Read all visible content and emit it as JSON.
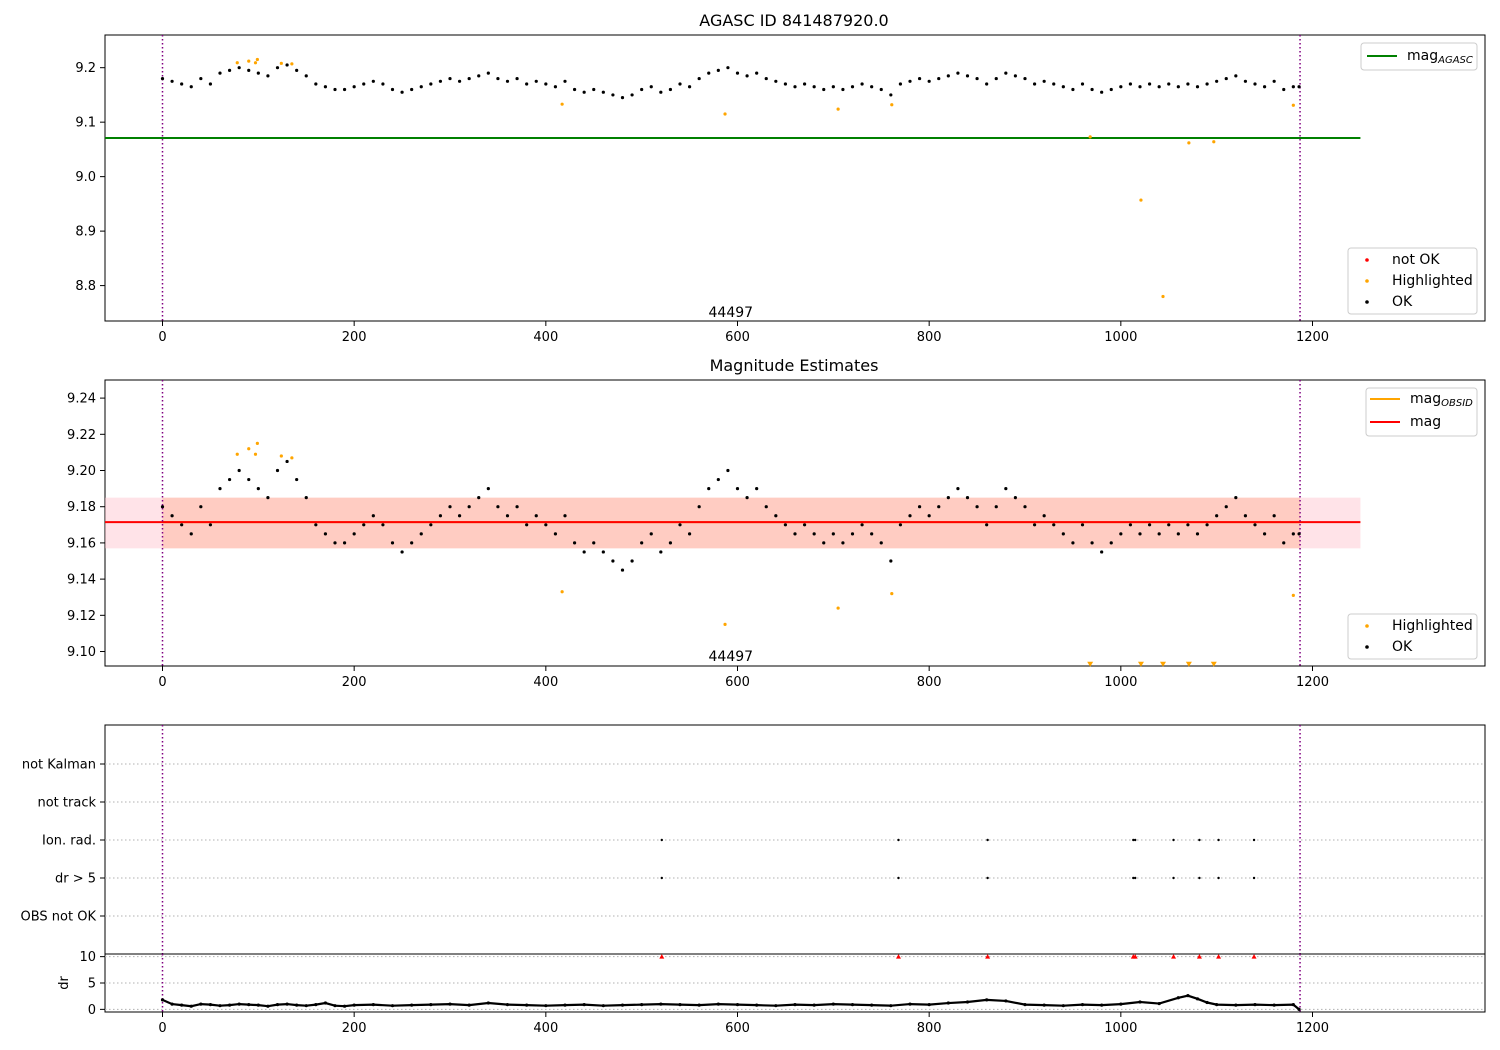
{
  "chart_data": [
    {
      "type": "scatter",
      "title": "AGASC ID 841487920.0",
      "xlabel": "",
      "ylabel": "",
      "xlim": [
        -60,
        1380
      ],
      "ylim": [
        8.735,
        9.26
      ],
      "xticks": [
        "0",
        "200",
        "400",
        "600",
        "800",
        "1000",
        "1200"
      ],
      "xtick_values": [
        0,
        200,
        400,
        600,
        800,
        1000,
        1200
      ],
      "yticks": [
        "8.8",
        "8.9",
        "9.0",
        "9.1",
        "9.2"
      ],
      "ytick_values": [
        8.8,
        8.9,
        9.0,
        9.1,
        9.2
      ],
      "vlines": [
        0,
        1187
      ],
      "annotation": {
        "text": "44497",
        "x": 593,
        "y": 8.75
      },
      "hlines": [
        {
          "name": "magAGASC",
          "y": 9.071,
          "x": [
            -60,
            1250
          ],
          "color": "#008000"
        }
      ],
      "legend": {
        "lines": [
          {
            "label": "mag",
            "sub": "AGASC",
            "color": "#008000"
          }
        ],
        "markers": [
          {
            "label": "not OK",
            "color": "#ff0000"
          },
          {
            "label": "Highlighted",
            "color": "#ffa500"
          },
          {
            "label": "OK",
            "color": "#000000"
          }
        ]
      },
      "series": [
        {
          "name": "OK",
          "color": "#000000",
          "shape": "dot",
          "x": [
            0,
            10,
            20,
            30,
            40,
            50,
            60,
            70,
            80,
            90,
            100,
            110,
            120,
            130,
            140,
            150,
            160,
            170,
            180,
            190,
            200,
            210,
            220,
            230,
            240,
            250,
            260,
            270,
            280,
            290,
            300,
            310,
            320,
            330,
            340,
            350,
            360,
            370,
            380,
            390,
            400,
            410,
            420,
            430,
            440,
            450,
            460,
            470,
            480,
            490,
            500,
            510,
            520,
            530,
            540,
            550,
            560,
            570,
            580,
            590,
            600,
            610,
            620,
            630,
            640,
            650,
            660,
            670,
            680,
            690,
            700,
            710,
            720,
            730,
            740,
            750,
            760,
            770,
            780,
            790,
            800,
            810,
            820,
            830,
            840,
            850,
            860,
            870,
            880,
            890,
            900,
            910,
            920,
            930,
            940,
            950,
            960,
            970,
            980,
            990,
            1000,
            1010,
            1020,
            1030,
            1040,
            1050,
            1060,
            1070,
            1080,
            1090,
            1100,
            1110,
            1120,
            1130,
            1140,
            1150,
            1160,
            1170,
            1180,
            1186
          ],
          "y": [
            9.18,
            9.175,
            9.17,
            9.165,
            9.18,
            9.17,
            9.19,
            9.195,
            9.2,
            9.195,
            9.19,
            9.185,
            9.2,
            9.205,
            9.195,
            9.185,
            9.17,
            9.165,
            9.16,
            9.16,
            9.165,
            9.17,
            9.175,
            9.17,
            9.16,
            9.155,
            9.16,
            9.165,
            9.17,
            9.175,
            9.18,
            9.175,
            9.18,
            9.185,
            9.19,
            9.18,
            9.175,
            9.18,
            9.17,
            9.175,
            9.17,
            9.165,
            9.175,
            9.16,
            9.155,
            9.16,
            9.155,
            9.15,
            9.145,
            9.15,
            9.16,
            9.165,
            9.155,
            9.16,
            9.17,
            9.165,
            9.18,
            9.19,
            9.195,
            9.2,
            9.19,
            9.185,
            9.19,
            9.18,
            9.175,
            9.17,
            9.165,
            9.17,
            9.165,
            9.16,
            9.165,
            9.16,
            9.165,
            9.17,
            9.165,
            9.16,
            9.15,
            9.17,
            9.175,
            9.18,
            9.175,
            9.18,
            9.185,
            9.19,
            9.185,
            9.18,
            9.17,
            9.18,
            9.19,
            9.185,
            9.18,
            9.17,
            9.175,
            9.17,
            9.165,
            9.16,
            9.17,
            9.16,
            9.155,
            9.16,
            9.165,
            9.17,
            9.165,
            9.17,
            9.165,
            9.17,
            9.165,
            9.17,
            9.165,
            9.17,
            9.175,
            9.18,
            9.185,
            9.175,
            9.17,
            9.165,
            9.175,
            9.16,
            9.165,
            9.165
          ]
        },
        {
          "name": "Highlighted",
          "color": "#ffa500",
          "shape": "dot",
          "x": [
            78,
            90,
            97,
            99,
            124,
            135,
            417,
            587,
            705,
            761,
            968,
            1021,
            1044,
            1071,
            1097,
            1180
          ],
          "y": [
            9.209,
            9.212,
            9.209,
            9.215,
            9.208,
            9.207,
            9.133,
            9.115,
            9.124,
            9.132,
            9.073,
            8.957,
            8.78,
            9.062,
            9.064,
            9.131
          ]
        }
      ]
    },
    {
      "type": "scatter",
      "title": "Magnitude Estimates",
      "xlabel": "",
      "ylabel": "",
      "xlim": [
        -60,
        1380
      ],
      "ylim": [
        9.092,
        9.25
      ],
      "xticks": [
        "0",
        "200",
        "400",
        "600",
        "800",
        "1000",
        "1200"
      ],
      "xtick_values": [
        0,
        200,
        400,
        600,
        800,
        1000,
        1200
      ],
      "yticks": [
        "9.10",
        "9.12",
        "9.14",
        "9.16",
        "9.18",
        "9.20",
        "9.22",
        "9.24"
      ],
      "ytick_values": [
        9.1,
        9.12,
        9.14,
        9.16,
        9.18,
        9.2,
        9.22,
        9.24
      ],
      "vlines": [
        0,
        1187
      ],
      "annotation": {
        "text": "44497",
        "x": 593,
        "y": 9.097
      },
      "bands": [
        {
          "name": "obsid-band",
          "x": [
            -60,
            1250
          ],
          "y": [
            9.157,
            9.185
          ],
          "color": "#ffc0cb"
        },
        {
          "name": "inner-band",
          "x": [
            0,
            1187
          ],
          "y": [
            9.157,
            9.185
          ],
          "color": "#ffa07a"
        }
      ],
      "hlines": [
        {
          "name": "magOBSID",
          "y": 9.1715,
          "x": [
            0,
            1187
          ],
          "color": "#ffa500"
        },
        {
          "name": "mag",
          "y": 9.1715,
          "x": [
            -60,
            1250
          ],
          "color": "#ff0000"
        }
      ],
      "legend": {
        "lines": [
          {
            "label": "mag",
            "sub": "OBSID",
            "color": "#ffa500"
          },
          {
            "label": "mag",
            "sub": "",
            "color": "#ff0000"
          }
        ],
        "markers": [
          {
            "label": "Highlighted",
            "color": "#ffa500"
          },
          {
            "label": "OK",
            "color": "#000000"
          }
        ]
      },
      "series": [
        {
          "name": "OK",
          "color": "#000000",
          "shape": "dot",
          "x": [
            0,
            10,
            20,
            30,
            40,
            50,
            60,
            70,
            80,
            90,
            100,
            110,
            120,
            130,
            140,
            150,
            160,
            170,
            180,
            190,
            200,
            210,
            220,
            230,
            240,
            250,
            260,
            270,
            280,
            290,
            300,
            310,
            320,
            330,
            340,
            350,
            360,
            370,
            380,
            390,
            400,
            410,
            420,
            430,
            440,
            450,
            460,
            470,
            480,
            490,
            500,
            510,
            520,
            530,
            540,
            550,
            560,
            570,
            580,
            590,
            600,
            610,
            620,
            630,
            640,
            650,
            660,
            670,
            680,
            690,
            700,
            710,
            720,
            730,
            740,
            750,
            760,
            770,
            780,
            790,
            800,
            810,
            820,
            830,
            840,
            850,
            860,
            870,
            880,
            890,
            900,
            910,
            920,
            930,
            940,
            950,
            960,
            970,
            980,
            990,
            1000,
            1010,
            1020,
            1030,
            1040,
            1050,
            1060,
            1070,
            1080,
            1090,
            1100,
            1110,
            1120,
            1130,
            1140,
            1150,
            1160,
            1170,
            1180,
            1186
          ],
          "y": [
            9.18,
            9.175,
            9.17,
            9.165,
            9.18,
            9.17,
            9.19,
            9.195,
            9.2,
            9.195,
            9.19,
            9.185,
            9.2,
            9.205,
            9.195,
            9.185,
            9.17,
            9.165,
            9.16,
            9.16,
            9.165,
            9.17,
            9.175,
            9.17,
            9.16,
            9.155,
            9.16,
            9.165,
            9.17,
            9.175,
            9.18,
            9.175,
            9.18,
            9.185,
            9.19,
            9.18,
            9.175,
            9.18,
            9.17,
            9.175,
            9.17,
            9.165,
            9.175,
            9.16,
            9.155,
            9.16,
            9.155,
            9.15,
            9.145,
            9.15,
            9.16,
            9.165,
            9.155,
            9.16,
            9.17,
            9.165,
            9.18,
            9.19,
            9.195,
            9.2,
            9.19,
            9.185,
            9.19,
            9.18,
            9.175,
            9.17,
            9.165,
            9.17,
            9.165,
            9.16,
            9.165,
            9.16,
            9.165,
            9.17,
            9.165,
            9.16,
            9.15,
            9.17,
            9.175,
            9.18,
            9.175,
            9.18,
            9.185,
            9.19,
            9.185,
            9.18,
            9.17,
            9.18,
            9.19,
            9.185,
            9.18,
            9.17,
            9.175,
            9.17,
            9.165,
            9.16,
            9.17,
            9.16,
            9.155,
            9.16,
            9.165,
            9.17,
            9.165,
            9.17,
            9.165,
            9.17,
            9.165,
            9.17,
            9.165,
            9.17,
            9.175,
            9.18,
            9.185,
            9.175,
            9.17,
            9.165,
            9.175,
            9.16,
            9.165,
            9.165
          ]
        },
        {
          "name": "Highlighted",
          "color": "#ffa500",
          "shape": "dot",
          "x": [
            78,
            90,
            97,
            99,
            124,
            135,
            417,
            587,
            705,
            761,
            1180
          ],
          "y": [
            9.209,
            9.212,
            9.209,
            9.215,
            9.208,
            9.207,
            9.133,
            9.115,
            9.124,
            9.132,
            9.131
          ]
        },
        {
          "name": "Highlighted (below range)",
          "color": "#ffa500",
          "shape": "triangle-down",
          "x": [
            968,
            1021,
            1044,
            1071,
            1097
          ],
          "y": [
            9.093,
            9.093,
            9.093,
            9.093,
            9.093
          ]
        }
      ]
    },
    {
      "type": "scatter",
      "title": "",
      "xlabel": "",
      "ylabel": "",
      "xlim": [
        -60,
        1380
      ],
      "categories": [
        "not Kalman",
        "not track",
        "Ion. rad.",
        "dr > 5",
        "OBS not OK"
      ],
      "vlines": [
        0,
        1187
      ],
      "series": [
        {
          "name": "Ion. rad.",
          "category": "Ion. rad.",
          "color": "#000000",
          "x": [
            521,
            768,
            861,
            1013,
            1015,
            1055,
            1082,
            1102,
            1139
          ]
        },
        {
          "name": "dr > 5",
          "category": "dr > 5",
          "color": "#000000",
          "x": [
            521,
            768,
            861,
            1013,
            1015,
            1055,
            1082,
            1102,
            1139
          ]
        }
      ]
    },
    {
      "type": "scatter",
      "title": "",
      "xlabel": "",
      "ylabel": "dr",
      "xlim": [
        -60,
        1380
      ],
      "ylim": [
        -0.5,
        10.5
      ],
      "xticks": [
        "0",
        "200",
        "400",
        "600",
        "800",
        "1000",
        "1200"
      ],
      "xtick_values": [
        0,
        200,
        400,
        600,
        800,
        1000,
        1200
      ],
      "yticks": [
        "0",
        "5",
        "10"
      ],
      "ytick_values": [
        0,
        5,
        10
      ],
      "vlines": [
        0,
        1187
      ],
      "series": [
        {
          "name": "dr",
          "color": "#000000",
          "shape": "dot",
          "x": [
            0,
            10,
            20,
            30,
            40,
            50,
            60,
            70,
            80,
            90,
            100,
            110,
            120,
            130,
            140,
            150,
            160,
            170,
            180,
            190,
            200,
            220,
            240,
            260,
            280,
            300,
            320,
            340,
            360,
            380,
            400,
            420,
            440,
            460,
            480,
            500,
            520,
            540,
            560,
            580,
            600,
            620,
            640,
            660,
            680,
            700,
            720,
            740,
            760,
            780,
            800,
            820,
            840,
            860,
            880,
            900,
            920,
            940,
            960,
            980,
            1000,
            1020,
            1040,
            1060,
            1070,
            1080,
            1090,
            1100,
            1120,
            1140,
            1160,
            1180,
            1186
          ],
          "y": [
            1.8,
            1.0,
            0.8,
            0.6,
            1.0,
            0.9,
            0.7,
            0.8,
            1.0,
            0.9,
            0.8,
            0.6,
            0.9,
            1.0,
            0.8,
            0.7,
            0.9,
            1.2,
            0.7,
            0.6,
            0.8,
            0.9,
            0.7,
            0.8,
            0.9,
            1.0,
            0.8,
            1.2,
            0.9,
            0.8,
            0.7,
            0.8,
            0.9,
            0.7,
            0.8,
            0.9,
            1.0,
            0.9,
            0.8,
            1.0,
            0.9,
            0.8,
            0.7,
            0.9,
            0.8,
            1.0,
            0.9,
            0.8,
            0.7,
            1.0,
            0.9,
            1.2,
            1.4,
            1.8,
            1.6,
            0.9,
            0.8,
            0.7,
            0.9,
            0.8,
            1.0,
            1.4,
            1.1,
            2.2,
            2.6,
            2.0,
            1.3,
            0.9,
            0.8,
            0.9,
            0.8,
            0.9,
            0.0
          ]
        },
        {
          "name": "dr > 5 marks",
          "color": "#ff0000",
          "shape": "triangle-up",
          "x": [
            521,
            768,
            861,
            1013,
            1015,
            1055,
            1082,
            1102,
            1139
          ],
          "y": [
            10,
            10,
            10,
            10,
            10,
            10,
            10,
            10,
            10
          ]
        }
      ]
    }
  ]
}
